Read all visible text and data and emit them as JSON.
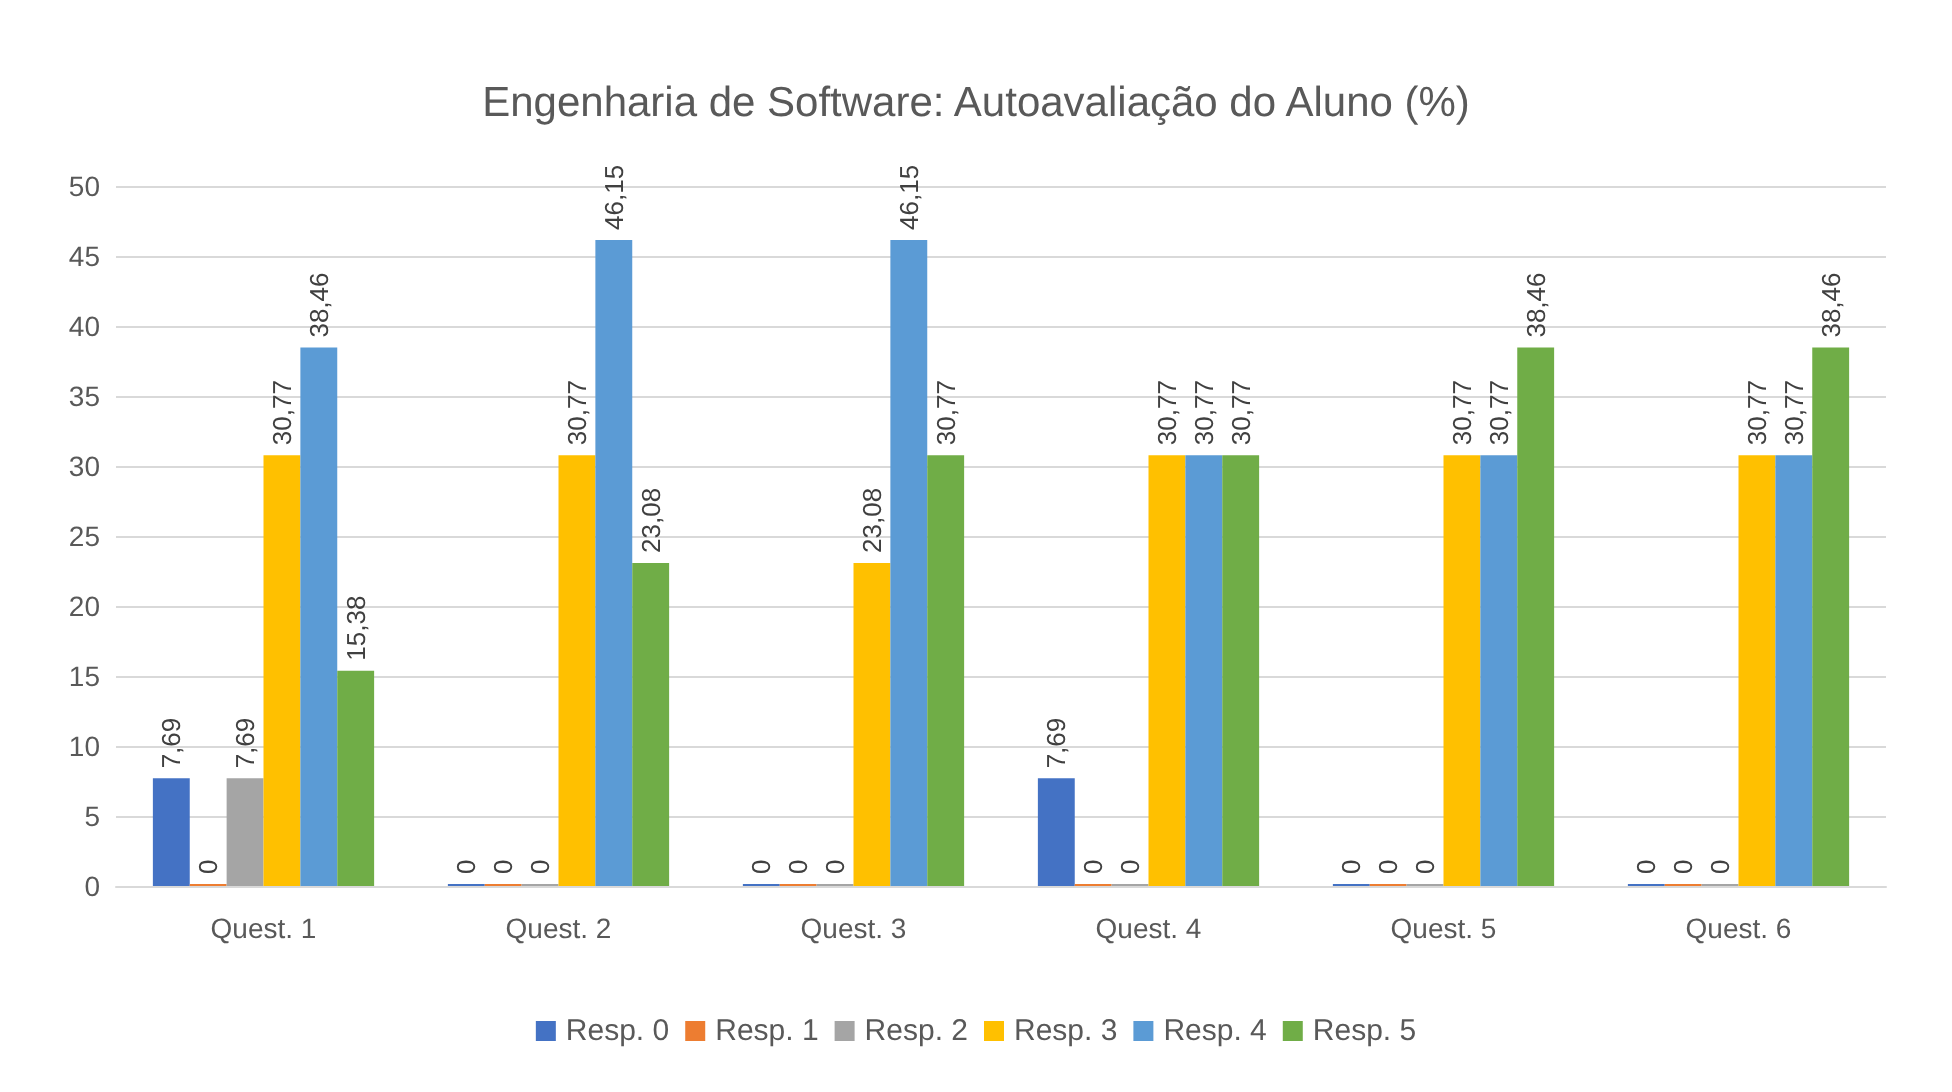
{
  "chart_data": {
    "type": "bar",
    "title": "Engenharia de Software: Autoavaliação do Aluno (%)",
    "categories": [
      "Quest. 1",
      "Quest. 2",
      "Quest. 3",
      "Quest. 4",
      "Quest. 5",
      "Quest. 6"
    ],
    "series": [
      {
        "name": "Resp. 0",
        "color": "#4472c4",
        "values": [
          7.69,
          0,
          0,
          7.69,
          0,
          0
        ],
        "value_labels": [
          "7,69",
          "0",
          "0",
          "7,69",
          "0",
          "0"
        ]
      },
      {
        "name": "Resp. 1",
        "color": "#ed7d31",
        "values": [
          0,
          0,
          0,
          0,
          0,
          0
        ],
        "value_labels": [
          "0",
          "0",
          "0",
          "0",
          "0",
          "0"
        ]
      },
      {
        "name": "Resp. 2",
        "color": "#a5a5a5",
        "values": [
          7.69,
          0,
          0,
          0,
          0,
          0
        ],
        "value_labels": [
          "7,69",
          "0",
          "0",
          "0",
          "0",
          "0"
        ]
      },
      {
        "name": "Resp. 3",
        "color": "#ffc000",
        "values": [
          30.77,
          30.77,
          23.08,
          30.77,
          30.77,
          30.77
        ],
        "value_labels": [
          "30,77",
          "30,77",
          "23,08",
          "30,77",
          "30,77",
          "30,77"
        ]
      },
      {
        "name": "Resp. 4",
        "color": "#5b9bd5",
        "values": [
          38.46,
          46.15,
          46.15,
          30.77,
          30.77,
          30.77
        ],
        "value_labels": [
          "38,46",
          "46,15",
          "46,15",
          "30,77",
          "30,77",
          "30,77"
        ]
      },
      {
        "name": "Resp. 5",
        "color": "#70ad47",
        "values": [
          15.38,
          23.08,
          30.77,
          30.77,
          38.46,
          38.46
        ],
        "value_labels": [
          "15,38",
          "23,08",
          "30,77",
          "30,77",
          "38,46",
          "38,46"
        ]
      }
    ],
    "ylim": [
      0,
      50
    ],
    "yticks": [
      0,
      5,
      10,
      15,
      20,
      25,
      30,
      35,
      40,
      45,
      50
    ],
    "grid": "y",
    "legend": "bottom"
  }
}
